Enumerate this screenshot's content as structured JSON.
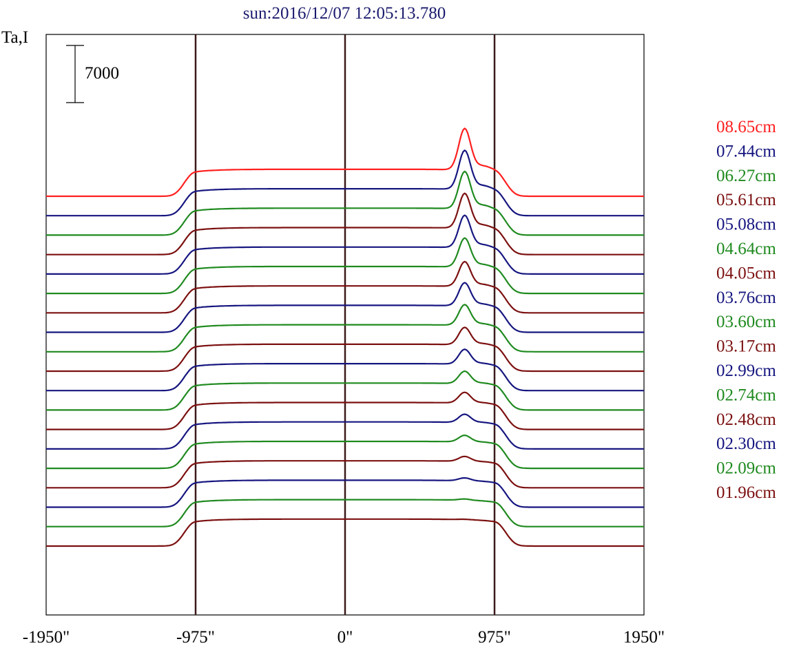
{
  "chart_data": {
    "type": "line",
    "title": "sun:2016/12/07 12:05:13.780",
    "ylabel": "Ta,I",
    "scale_bar_label": "7000",
    "scale_bar_value": 7000,
    "x_ticks": [
      {
        "value": -1950,
        "label": "-1950\""
      },
      {
        "value": -975,
        "label": "-975\""
      },
      {
        "value": 0,
        "label": "0\""
      },
      {
        "value": 975,
        "label": "975\""
      },
      {
        "value": 1950,
        "label": "1950\""
      }
    ],
    "xlim": [
      -1950,
      1950
    ],
    "reference_lines_x": [
      -975,
      0,
      975
    ],
    "colors": {
      "red": "#ff2020",
      "blue": "#161680",
      "green": "#1f8a1f",
      "maroon": "#7c1010"
    },
    "series_order": "top to bottom; each trace offset by a fixed step, values in same units as scale bar",
    "series": [
      {
        "name": "08.65cm",
        "color": "#ff2020",
        "disk_level": 3300,
        "peak_height": 5000
      },
      {
        "name": "07.44cm",
        "color": "#161680",
        "disk_level": 3300,
        "peak_height": 4700
      },
      {
        "name": "06.27cm",
        "color": "#1f8a1f",
        "disk_level": 3300,
        "peak_height": 4500
      },
      {
        "name": "05.61cm",
        "color": "#7c1010",
        "disk_level": 3300,
        "peak_height": 4200
      },
      {
        "name": "05.08cm",
        "color": "#161680",
        "disk_level": 3300,
        "peak_height": 3900
      },
      {
        "name": "04.64cm",
        "color": "#1f8a1f",
        "disk_level": 3300,
        "peak_height": 3500
      },
      {
        "name": "04.05cm",
        "color": "#7c1010",
        "disk_level": 3300,
        "peak_height": 3000
      },
      {
        "name": "03.76cm",
        "color": "#161680",
        "disk_level": 3300,
        "peak_height": 2800
      },
      {
        "name": "03.60cm",
        "color": "#1f8a1f",
        "disk_level": 3300,
        "peak_height": 2500
      },
      {
        "name": "03.17cm",
        "color": "#7c1010",
        "disk_level": 3300,
        "peak_height": 2100
      },
      {
        "name": "02.99cm",
        "color": "#161680",
        "disk_level": 3300,
        "peak_height": 1800
      },
      {
        "name": "02.74cm",
        "color": "#1f8a1f",
        "disk_level": 3300,
        "peak_height": 1500
      },
      {
        "name": "02.48cm",
        "color": "#7c1010",
        "disk_level": 3300,
        "peak_height": 1300
      },
      {
        "name": "02.30cm",
        "color": "#161680",
        "disk_level": 3300,
        "peak_height": 1000
      },
      {
        "name": "02.09cm",
        "color": "#1f8a1f",
        "disk_level": 3300,
        "peak_height": 800
      },
      {
        "name": "01.96cm",
        "color": "#7c1010",
        "disk_level": 3300,
        "peak_height": 600
      },
      {
        "name": "",
        "color": "#161680",
        "disk_level": 3300,
        "peak_height": 350
      },
      {
        "name": "",
        "color": "#1f8a1f",
        "disk_level": 3300,
        "peak_height": 150
      },
      {
        "name": "",
        "color": "#7c1010",
        "disk_level": 3300,
        "peak_height": 50
      }
    ],
    "peak_x": 780,
    "trace_offset_step": 2380
  }
}
